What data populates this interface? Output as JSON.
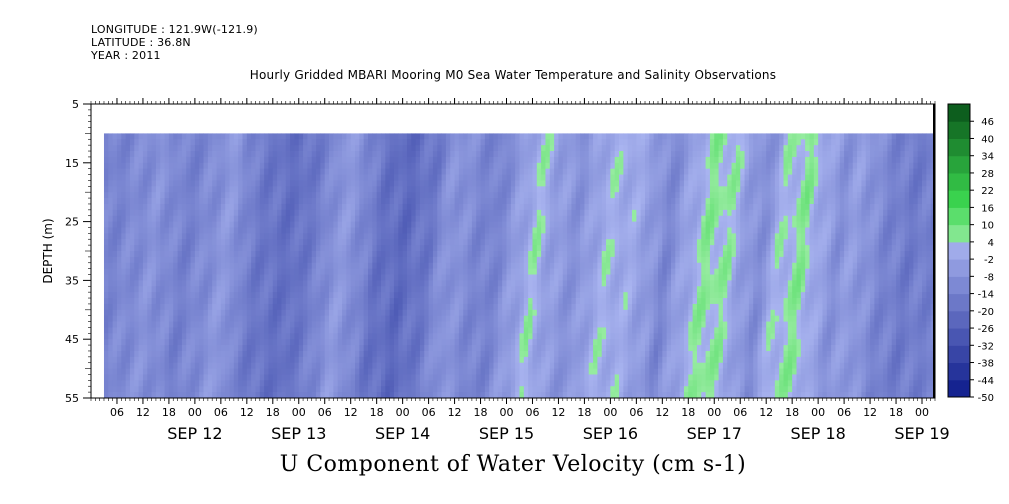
{
  "header": {
    "longitude": "LONGITUDE : 121.9W(-121.9)",
    "latitude": "LATITUDE : 36.8N",
    "year": "YEAR : 2011"
  },
  "chart_data": {
    "type": "heatmap",
    "title": "Hourly Gridded MBARI Mooring M0 Sea Water Temperature and Salinity Observations",
    "xlabel": "",
    "ylabel": "DEPTH (m)",
    "footer": "U Component of Water Velocity (cm s-1)",
    "y_range": [
      5,
      55
    ],
    "y_reversed": true,
    "y_ticks": [
      5,
      15,
      25,
      35,
      45,
      55
    ],
    "depth_range_of_data": [
      10,
      55
    ],
    "x_start": "2011-09-11 00:00",
    "x_end": "2011-09-19 03:00",
    "x_data_start": "2011-09-11 03:00",
    "x_hour_tick_labels": [
      "06",
      "12",
      "18",
      "00",
      "06",
      "12",
      "18",
      "00",
      "06",
      "12",
      "18",
      "00",
      "06",
      "12",
      "18",
      "00",
      "06",
      "12",
      "18",
      "00",
      "06",
      "12",
      "18",
      "00",
      "06",
      "12",
      "18",
      "00",
      "06",
      "12",
      "18",
      "00"
    ],
    "x_date_labels": [
      "SEP 12",
      "SEP 13",
      "SEP 14",
      "SEP 15",
      "SEP 16",
      "SEP 17",
      "SEP 18",
      "SEP 19"
    ],
    "colorbar": {
      "levels": [
        -50,
        -44,
        -38,
        -32,
        -26,
        -20,
        -14,
        -8,
        -2,
        4,
        10,
        16,
        22,
        28,
        34,
        40,
        46
      ],
      "labels": [
        "-50",
        "-44",
        "-38",
        "-32",
        "-26",
        "-20",
        "-14",
        "-8",
        "-2",
        "4",
        "10",
        "16",
        "22",
        "28",
        "34",
        "40",
        "46"
      ],
      "low_color": "#0c1a8a",
      "mid_color": "#a9b4f0",
      "high_color": "#0c5a1c"
    },
    "velocity_profile_by_time": [
      {
        "t": 0,
        "v": -14
      },
      {
        "t": 6,
        "v": -12
      },
      {
        "t": 10,
        "v": -10
      },
      {
        "t": 14,
        "v": -8
      },
      {
        "t": 17,
        "v": -10
      },
      {
        "t": 20,
        "v": -14
      },
      {
        "t": 24,
        "v": -12
      },
      {
        "t": 28,
        "v": -8
      },
      {
        "t": 32,
        "v": -6
      },
      {
        "t": 35,
        "v": -14
      },
      {
        "t": 40,
        "v": -18
      },
      {
        "t": 46,
        "v": -20
      },
      {
        "t": 52,
        "v": -14
      },
      {
        "t": 56,
        "v": -6
      },
      {
        "t": 60,
        "v": -8
      },
      {
        "t": 65,
        "v": -18
      },
      {
        "t": 71,
        "v": -22
      },
      {
        "t": 78,
        "v": -16
      },
      {
        "t": 82,
        "v": -6
      },
      {
        "t": 86,
        "v": -10
      },
      {
        "t": 92,
        "v": -14
      },
      {
        "t": 98,
        "v": -4
      },
      {
        "t": 102,
        "v": 4
      },
      {
        "t": 106,
        "v": -4
      },
      {
        "t": 112,
        "v": -8
      },
      {
        "t": 118,
        "v": 2
      },
      {
        "t": 124,
        "v": 0
      },
      {
        "t": 128,
        "v": -4
      },
      {
        "t": 132,
        "v": -12
      },
      {
        "t": 137,
        "v": -2
      },
      {
        "t": 142,
        "v": 6
      },
      {
        "t": 147,
        "v": 4
      },
      {
        "t": 151,
        "v": -6
      },
      {
        "t": 154,
        "v": -10
      },
      {
        "t": 158,
        "v": 2
      },
      {
        "t": 164,
        "v": 6
      },
      {
        "t": 168,
        "v": -2
      },
      {
        "t": 172,
        "v": -8
      },
      {
        "t": 176,
        "v": -4
      },
      {
        "t": 182,
        "v": -12
      },
      {
        "t": 188,
        "v": -16
      },
      {
        "t": 194,
        "v": -14
      }
    ]
  }
}
